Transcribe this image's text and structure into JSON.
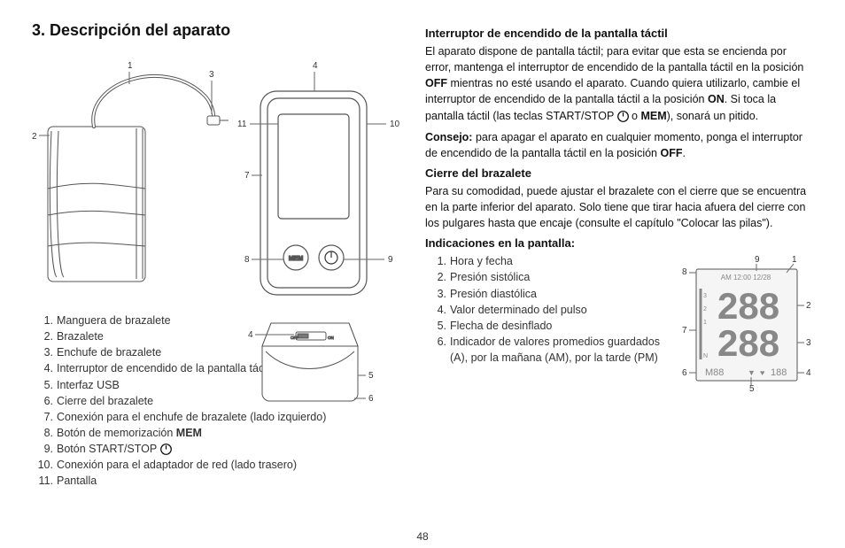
{
  "section_title": "3. Descripción del aparato",
  "page_number": "48",
  "parts_list": [
    {
      "n": "1.",
      "t": "Manguera de brazalete"
    },
    {
      "n": "2.",
      "t": "Brazalete"
    },
    {
      "n": "3.",
      "t": "Enchufe de brazalete"
    },
    {
      "n": "4.",
      "t": "Interruptor de encendido de la pantalla táctil"
    },
    {
      "n": "5.",
      "t": "Interfaz USB"
    },
    {
      "n": "6.",
      "t": "Cierre del brazalete"
    },
    {
      "n": "7.",
      "t": "Conexión para el enchufe de brazalete (lado izquierdo)"
    },
    {
      "n": "8.",
      "t": "Botón de memorización <b>MEM</b>"
    },
    {
      "n": "9.",
      "t": "Botón START/STOP <svg class=\"inline-icon\" width=\"13\" height=\"13\" viewBox=\"0 0 13 13\"><circle cx=\"6.5\" cy=\"6.5\" r=\"5.8\" fill=\"none\" stroke=\"#000\" stroke-width=\"1.2\"/><line x1=\"6.5\" y1=\"2.2\" x2=\"6.5\" y2=\"6.5\" stroke=\"#000\" stroke-width=\"1.2\"/></svg>"
    },
    {
      "n": "10.",
      "t": "Conexión para el adaptador de red (lado trasero)"
    },
    {
      "n": "11.",
      "t": "Pantalla"
    }
  ],
  "right": {
    "h1": "Interruptor de encendido de la pantalla táctil",
    "p1a": "El aparato dispone de pantalla táctil; para evitar que esta se encienda por error, mantenga el interruptor de encendido de la pantalla táctil en la posición ",
    "p1_off": "OFF",
    "p1b": " mientras no esté usando el aparato. Cuando quiera utilizarlo, cambie el interruptor de encendido de la pantalla táctil a la posición ",
    "p1_on": "ON",
    "p1c": ". Si toca la pantalla táctil (las teclas START/STOP ",
    "p1d": " o ",
    "p1_mem": "MEM",
    "p1e": "), sonará un pitido.",
    "p2_lead": "Consejo:",
    "p2": " para apagar el aparato en cualquier momento, ponga el interruptor de encendido de la pantalla táctil en la posición ",
    "p2_off": "OFF",
    "p2b": ".",
    "h2": "Cierre del brazalete",
    "p3": "Para su comodidad, puede ajustar el brazalete con el cierre que se encuentra en la parte inferior del aparato. Solo tiene que tirar hacia afuera del cierre con los pulgares hasta que encaje (consulte el capítulo \"Colocar las pilas\").",
    "h3": "Indicaciones en la pantalla:"
  },
  "display_list": [
    {
      "n": "1.",
      "t": "Hora y fecha"
    },
    {
      "n": "2.",
      "t": "Presión sistólica"
    },
    {
      "n": "3.",
      "t": "Presión diastólica"
    },
    {
      "n": "4.",
      "t": "Valor determinado del pulso"
    },
    {
      "n": "5.",
      "t": "Flecha de desinflado"
    },
    {
      "n": "6.",
      "t": "Indicador de valores promedios guardados (<span style=\"font-family:sans-serif\">A</span>), por la mañana (<span style=\"font-family:sans-serif\">AM</span>), por la tarde (<span style=\"font-family:sans-serif\">PM</span>)"
    }
  ],
  "diagram_callouts_top": [
    "1",
    "2",
    "3",
    "4",
    "7",
    "8",
    "9",
    "10",
    "11"
  ],
  "diagram_callouts_bottom": [
    "4",
    "5",
    "6"
  ],
  "display_callouts": [
    "1",
    "2",
    "3",
    "4",
    "5",
    "6",
    "7",
    "8",
    "9"
  ],
  "buttons": {
    "mem": "MEM"
  },
  "switch_labels": {
    "off": "OFF",
    "on": "ON"
  },
  "colors": {
    "stroke": "#555",
    "text": "#333",
    "line": "#666",
    "fill_light": "#fff",
    "lcd_fill": "#f5f5f5"
  }
}
